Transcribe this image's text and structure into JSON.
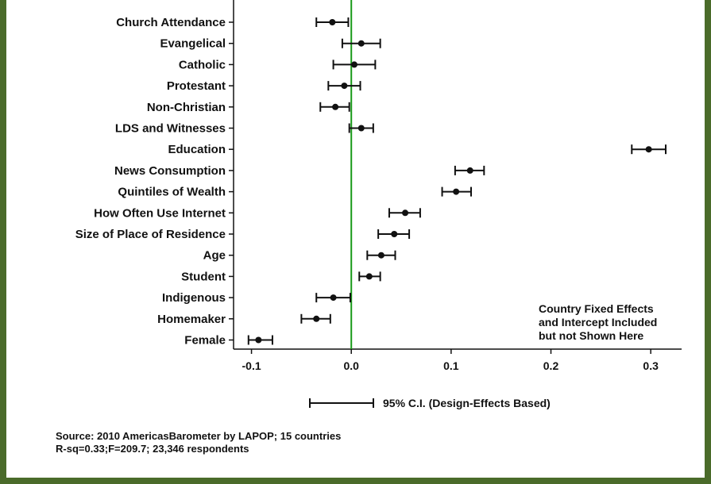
{
  "chart_data": {
    "type": "dot-whisker",
    "xlim": [
      -0.1,
      0.3
    ],
    "xticks": [
      -0.1,
      0.0,
      0.1,
      0.2,
      0.3
    ],
    "xtick_labels": [
      "-0.1",
      "0.0",
      "0.1",
      "0.2",
      "0.3"
    ],
    "reference_line_x": 0.0,
    "reference_line_color": "#1a9a1a",
    "categories": [
      "Church Attendance",
      "Evangelical",
      "Catholic",
      "Protestant",
      "Non-Christian",
      "LDS and Witnesses",
      "Education",
      "News Consumption",
      "Quintiles of Wealth",
      "How Often Use Internet",
      "Size of Place of Residence",
      "Age",
      "Student",
      "Indigenous",
      "Homemaker",
      "Female"
    ],
    "estimates": [
      -0.019,
      0.01,
      0.003,
      -0.007,
      -0.016,
      0.01,
      0.298,
      0.119,
      0.105,
      0.054,
      0.043,
      0.03,
      0.018,
      -0.018,
      -0.035,
      -0.093
    ],
    "ci_low": [
      -0.035,
      -0.009,
      -0.018,
      -0.023,
      -0.031,
      -0.002,
      0.281,
      0.104,
      0.091,
      0.038,
      0.027,
      0.016,
      0.008,
      -0.035,
      -0.05,
      -0.103
    ],
    "ci_high": [
      -0.003,
      0.029,
      0.024,
      0.009,
      -0.002,
      0.022,
      0.315,
      0.133,
      0.12,
      0.069,
      0.058,
      0.044,
      0.029,
      -0.001,
      -0.021,
      -0.079
    ],
    "annotation": [
      "Country Fixed Effects",
      "and Intercept Included",
      "but not Shown Here"
    ],
    "legend": "95% C.I. (Design-Effects Based)",
    "source": [
      "Source: 2010 AmericasBarometer by LAPOP; 15 countries",
      "R-sq=0.33;F=209.7; 23,346 respondents"
    ]
  }
}
